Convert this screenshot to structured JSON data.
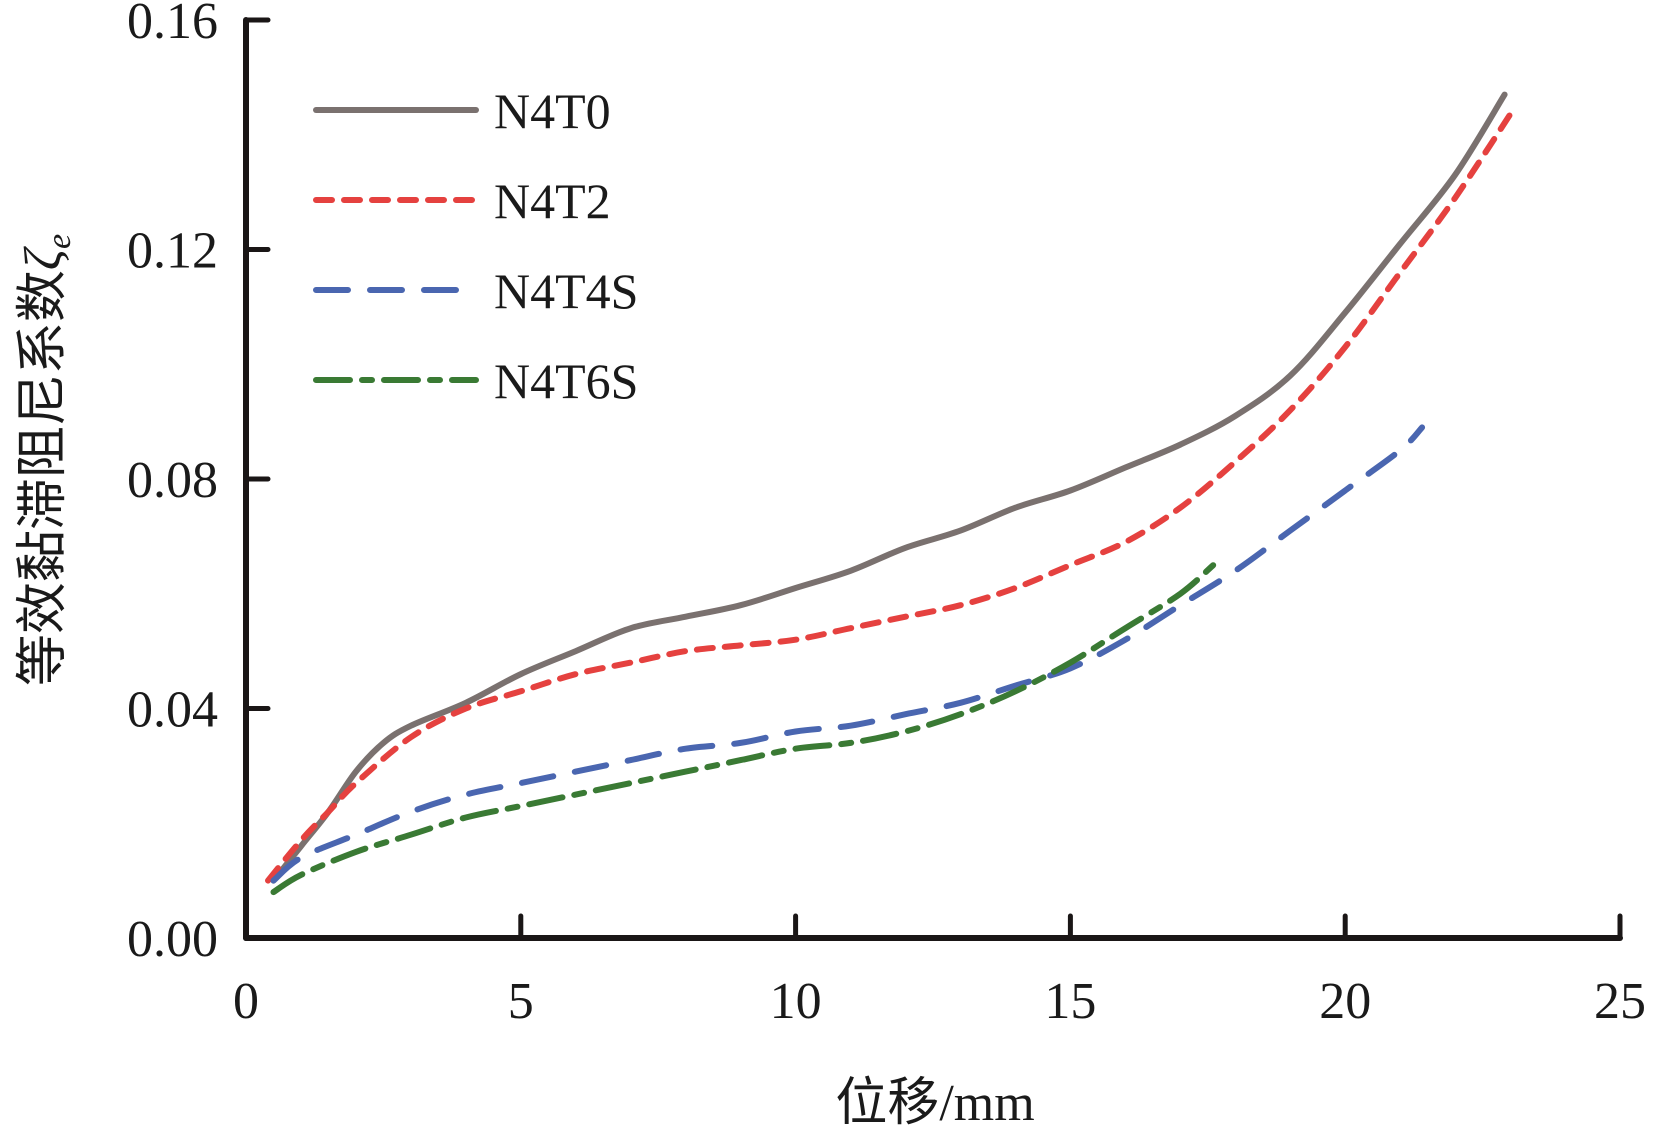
{
  "chart_data": {
    "type": "line",
    "title": "",
    "xlabel": "位移/mm",
    "ylabel": "等效黏滞阻尼系数",
    "ylabel_symbol": "ζ",
    "ylabel_subscript": "e",
    "xlim": [
      0,
      25
    ],
    "ylim": [
      0,
      0.16
    ],
    "xticks": [
      0,
      5,
      10,
      15,
      20,
      25
    ],
    "xtick_labels": [
      "0",
      "5",
      "10",
      "15",
      "20",
      "25"
    ],
    "yticks": [
      0,
      0.04,
      0.08,
      0.12,
      0.16
    ],
    "ytick_labels": [
      "0.00",
      "0.04",
      "0.08",
      "0.12",
      "0.16"
    ],
    "grid": false,
    "legend_position": "top-left",
    "series": [
      {
        "name": "N4T0",
        "color": "#7a716f",
        "style": "solid",
        "x": [
          0.5,
          1,
          1.5,
          2,
          2.5,
          3,
          4,
          5,
          6,
          7,
          8,
          9,
          10,
          11,
          12,
          13,
          14,
          15,
          16,
          17,
          18,
          19,
          20,
          21,
          22,
          22.9
        ],
        "y": [
          0.01,
          0.016,
          0.022,
          0.029,
          0.034,
          0.037,
          0.041,
          0.046,
          0.05,
          0.054,
          0.056,
          0.058,
          0.061,
          0.064,
          0.068,
          0.071,
          0.075,
          0.078,
          0.082,
          0.086,
          0.091,
          0.098,
          0.109,
          0.121,
          0.133,
          0.147
        ]
      },
      {
        "name": "N4T2",
        "color": "#e5413f",
        "style": "dotted",
        "x": [
          0.4,
          1,
          1.5,
          2,
          3,
          4,
          5,
          6,
          7,
          8,
          9,
          10,
          11,
          12,
          13,
          14,
          15,
          16,
          17,
          18,
          19,
          20,
          21,
          22,
          23.1
        ],
        "y": [
          0.01,
          0.017,
          0.022,
          0.027,
          0.035,
          0.04,
          0.043,
          0.046,
          0.048,
          0.05,
          0.051,
          0.052,
          0.054,
          0.056,
          0.058,
          0.061,
          0.065,
          0.069,
          0.075,
          0.083,
          0.092,
          0.103,
          0.116,
          0.129,
          0.145
        ]
      },
      {
        "name": "N4T4S",
        "color": "#4a66b0",
        "style": "dashed",
        "x": [
          0.5,
          1,
          2,
          3,
          4,
          5,
          6,
          7,
          8,
          9,
          10,
          11,
          12,
          13,
          14,
          15,
          16,
          17,
          18,
          19,
          20,
          21,
          21.4
        ],
        "y": [
          0.01,
          0.014,
          0.018,
          0.022,
          0.025,
          0.027,
          0.029,
          0.031,
          0.033,
          0.034,
          0.036,
          0.037,
          0.039,
          0.041,
          0.044,
          0.047,
          0.052,
          0.058,
          0.064,
          0.071,
          0.078,
          0.085,
          0.089
        ]
      },
      {
        "name": "N4T6S",
        "color": "#3a7a34",
        "style": "dash-dot",
        "x": [
          0.5,
          1,
          2,
          3,
          4,
          5,
          6,
          7,
          8,
          9,
          10,
          11,
          12,
          13,
          14,
          15,
          16,
          17,
          17.6
        ],
        "y": [
          0.008,
          0.011,
          0.015,
          0.018,
          0.021,
          0.023,
          0.025,
          0.027,
          0.029,
          0.031,
          0.033,
          0.034,
          0.036,
          0.039,
          0.043,
          0.048,
          0.054,
          0.06,
          0.065
        ]
      }
    ]
  }
}
